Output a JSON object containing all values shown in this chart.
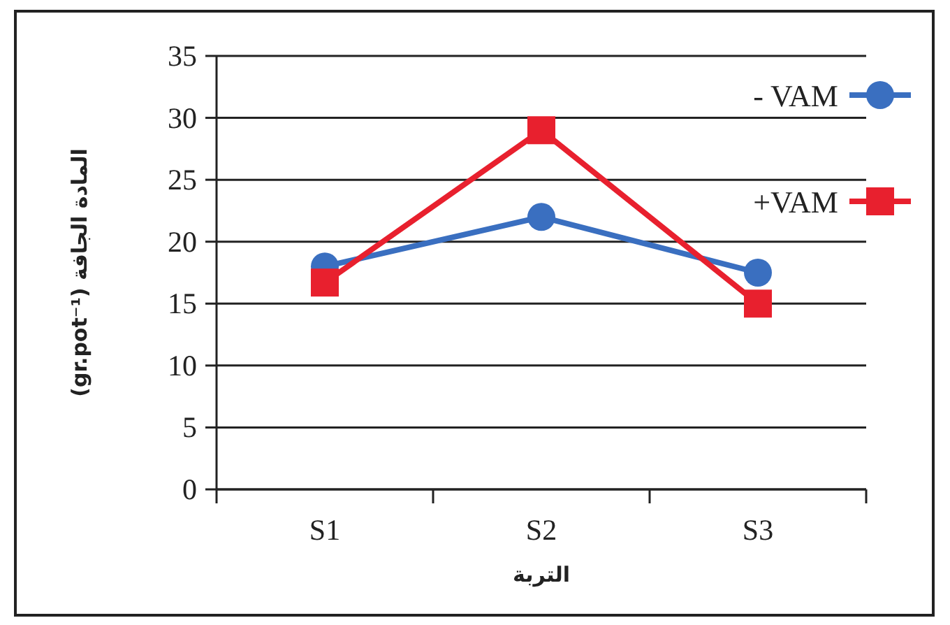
{
  "chart_data": {
    "type": "line",
    "xlabel": "التربة",
    "ylabel": "المادة الجافة (gr.pot⁻¹)",
    "categories": [
      "S1",
      "S2",
      "S3"
    ],
    "series": [
      {
        "name": "- VAM",
        "color": "#3a6fc0",
        "marker": "circle",
        "values": [
          18,
          22,
          17.5
        ]
      },
      {
        "name": "+VAM",
        "color": "#e8202e",
        "marker": "square",
        "values": [
          16.7,
          29,
          15
        ]
      }
    ],
    "ylim": [
      0,
      35
    ],
    "yticks": [
      0,
      5,
      10,
      15,
      20,
      25,
      30,
      35
    ],
    "grid": "y",
    "legend": "top right",
    "line_style": "solid"
  }
}
